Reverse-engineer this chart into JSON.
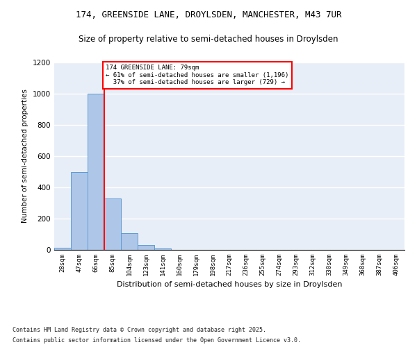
{
  "title_line1": "174, GREENSIDE LANE, DROYLSDEN, MANCHESTER, M43 7UR",
  "title_line2": "Size of property relative to semi-detached houses in Droylsden",
  "xlabel": "Distribution of semi-detached houses by size in Droylsden",
  "ylabel": "Number of semi-detached properties",
  "categories": [
    "28sqm",
    "47sqm",
    "66sqm",
    "85sqm",
    "104sqm",
    "123sqm",
    "141sqm",
    "160sqm",
    "179sqm",
    "198sqm",
    "217sqm",
    "236sqm",
    "255sqm",
    "274sqm",
    "293sqm",
    "312sqm",
    "330sqm",
    "349sqm",
    "368sqm",
    "387sqm",
    "406sqm"
  ],
  "values": [
    15,
    500,
    1000,
    330,
    105,
    30,
    10,
    0,
    0,
    0,
    0,
    0,
    0,
    0,
    0,
    0,
    0,
    0,
    0,
    0,
    0
  ],
  "bar_color": "#aec6e8",
  "bar_edge_color": "#5b9bd5",
  "property_line_x": 2.5,
  "property_sqm": 79,
  "pct_smaller": 61,
  "count_smaller": 1196,
  "pct_larger": 37,
  "count_larger": 729,
  "vline_color": "red",
  "ylim": [
    0,
    1200
  ],
  "yticks": [
    0,
    200,
    400,
    600,
    800,
    1000,
    1200
  ],
  "footer_line1": "Contains HM Land Registry data © Crown copyright and database right 2025.",
  "footer_line2": "Contains public sector information licensed under the Open Government Licence v3.0.",
  "bg_color": "#e8eef7"
}
